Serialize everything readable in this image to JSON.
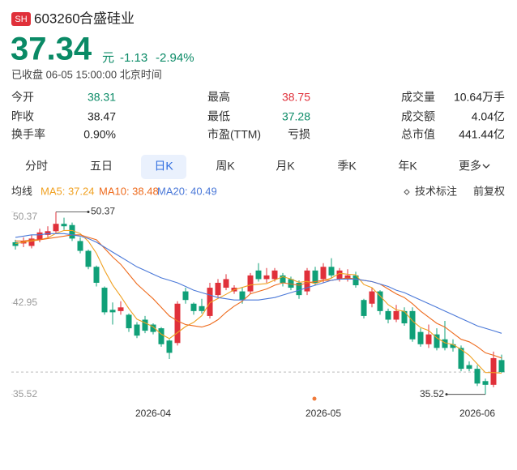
{
  "header": {
    "market": "SH",
    "code": "603260",
    "name": "合盛硅业",
    "price": "37.34",
    "unit": "元",
    "change": "-1.13",
    "change_pct": "-2.94%",
    "status": "已收盘 06-05 15:00:00 北京时间"
  },
  "stats": [
    [
      {
        "label": "今开",
        "value": "38.31",
        "color": "#0a8a66"
      },
      {
        "label": "最高",
        "value": "38.75",
        "color": "#e0303a"
      },
      {
        "label": "成交量",
        "value": "10.64万手",
        "color": "#222222"
      }
    ],
    [
      {
        "label": "昨收",
        "value": "38.47",
        "color": "#222222"
      },
      {
        "label": "最低",
        "value": "37.28",
        "color": "#0a8a66"
      },
      {
        "label": "成交额",
        "value": "4.04亿",
        "color": "#222222"
      }
    ],
    [
      {
        "label": "换手率",
        "value": "0.90%",
        "color": "#222222"
      },
      {
        "label": "市盈(TTM)",
        "value": "亏损",
        "color": "#222222"
      },
      {
        "label": "总市值",
        "value": "441.44亿",
        "color": "#222222"
      }
    ]
  ],
  "tabs": [
    "分时",
    "五日",
    "日K",
    "周K",
    "月K",
    "季K",
    "年K",
    "更多"
  ],
  "ma_legend": {
    "title": "均线",
    "items": [
      {
        "text": "MA5: 37.24",
        "color": "#f0a020"
      },
      {
        "text": "MA10: 38.48",
        "color": "#ee6a1c"
      },
      {
        "text": "MA20: 40.49",
        "color": "#4a78d8"
      }
    ]
  },
  "tools": [
    "技术标注",
    "前复权"
  ],
  "chart_data": {
    "type": "candlestick",
    "categories": [
      null,
      null,
      null,
      null,
      null,
      null,
      null,
      null,
      null,
      null,
      null,
      null,
      null,
      null,
      null,
      null,
      null,
      "2026-04",
      null,
      null,
      null,
      null,
      null,
      null,
      null,
      null,
      null,
      null,
      null,
      null,
      null,
      null,
      null,
      null,
      null,
      null,
      null,
      null,
      "2026-05",
      null,
      null,
      null,
      null,
      null,
      null,
      null,
      null,
      null,
      null,
      null,
      null,
      null,
      null,
      null,
      null,
      null,
      null,
      "2026-06",
      null,
      null,
      null
    ],
    "open": [
      47.9,
      47.8,
      47.6,
      48.1,
      48.5,
      48.8,
      49.4,
      49.3,
      48.0,
      47.2,
      45.9,
      44.2,
      42.4,
      42.3,
      42.0,
      41.2,
      41.6,
      41.2,
      40.9,
      39.9,
      39.7,
      43.9,
      42.9,
      42.7,
      41.9,
      43.6,
      44.2,
      43.9,
      43.9,
      43.9,
      45.6,
      44.9,
      44.9,
      45.2,
      44.9,
      44.6,
      43.9,
      45.6,
      44.9,
      45.9,
      44.9,
      44.9,
      45.2,
      43.2,
      42.9,
      43.9,
      42.3,
      41.6,
      42.3,
      42.3,
      40.6,
      39.6,
      40.4,
      40.0,
      39.6,
      39.3,
      37.9,
      37.6,
      36.6,
      36.3,
      38.31
    ],
    "high": [
      48.1,
      48.3,
      48.5,
      49.0,
      49.2,
      50.37,
      49.9,
      49.5,
      48.3,
      47.3,
      46.0,
      44.3,
      43.0,
      43.1,
      42.1,
      41.4,
      41.9,
      41.3,
      41.0,
      40.0,
      43.1,
      44.2,
      43.0,
      43.3,
      44.6,
      44.9,
      45.3,
      44.4,
      44.2,
      45.4,
      46.2,
      45.8,
      45.8,
      45.4,
      45.1,
      44.8,
      45.8,
      45.9,
      46.2,
      46.6,
      45.8,
      45.7,
      45.5,
      43.3,
      44.2,
      44.0,
      42.5,
      42.8,
      42.6,
      42.6,
      40.9,
      41.2,
      40.9,
      41.5,
      40.0,
      39.5,
      38.2,
      37.9,
      36.8,
      39.0,
      38.75
    ],
    "low": [
      47.3,
      47.5,
      47.4,
      47.9,
      48.3,
      48.6,
      48.9,
      48.0,
      47.0,
      45.7,
      44.3,
      42.0,
      41.2,
      42.0,
      40.6,
      40.1,
      40.5,
      40.4,
      39.4,
      38.4,
      39.5,
      42.9,
      42.0,
      42.1,
      41.7,
      43.4,
      44.0,
      43.7,
      42.9,
      43.7,
      44.7,
      44.6,
      44.7,
      44.3,
      44.0,
      43.3,
      43.6,
      44.4,
      44.6,
      45.0,
      44.7,
      44.7,
      44.2,
      41.7,
      42.6,
      42.0,
      41.3,
      41.4,
      41.1,
      39.8,
      39.4,
      39.3,
      39.1,
      39.1,
      39.0,
      37.4,
      37.4,
      36.2,
      35.52,
      36.1,
      37.28
    ],
    "close": [
      47.6,
      48.0,
      48.2,
      48.7,
      48.8,
      49.4,
      49.2,
      48.2,
      47.2,
      45.9,
      44.6,
      42.2,
      42.2,
      42.6,
      40.9,
      40.3,
      40.7,
      40.6,
      39.6,
      38.9,
      42.9,
      43.2,
      42.3,
      42.3,
      44.2,
      44.6,
      44.9,
      44.2,
      43.2,
      45.2,
      44.9,
      45.2,
      45.6,
      44.6,
      44.2,
      43.6,
      45.6,
      44.6,
      45.9,
      45.2,
      45.6,
      45.2,
      44.4,
      41.9,
      43.9,
      42.3,
      41.6,
      42.3,
      41.3,
      40.0,
      39.6,
      40.4,
      39.3,
      39.3,
      39.3,
      37.6,
      37.6,
      36.4,
      36.3,
      38.47,
      37.34
    ],
    "up_color": "#e0303a",
    "down_color": "#10a078",
    "ma": [
      {
        "color": "#f0a020",
        "values": [
          47.8,
          47.9,
          48.0,
          48.1,
          48.26,
          48.62,
          48.86,
          48.86,
          48.6,
          47.98,
          47.0,
          45.62,
          44.42,
          43.5,
          42.5,
          41.64,
          41.34,
          41.02,
          40.42,
          40.06,
          40.54,
          41.04,
          41.38,
          41.92,
          42.98,
          43.32,
          43.66,
          44.04,
          44.22,
          44.42,
          44.48,
          44.54,
          44.82,
          45.1,
          44.9,
          44.64,
          44.72,
          44.52,
          44.78,
          44.98,
          45.38,
          45.3,
          45.26,
          44.46,
          44.2,
          43.54,
          42.82,
          42.4,
          42.28,
          41.5,
          40.96,
          40.72,
          40.12,
          39.72,
          39.58,
          39.18,
          38.7,
          38.0,
          37.3,
          37.3,
          37.24
        ]
      },
      {
        "color": "#ee6a1c",
        "values": [
          48.0,
          48.0,
          48.1,
          48.1,
          48.2,
          48.3,
          48.4,
          48.5,
          48.5,
          48.3,
          48.1,
          47.4,
          46.7,
          46.1,
          45.3,
          44.5,
          43.9,
          43.3,
          42.6,
          41.9,
          41.5,
          41.2,
          41.1,
          41.0,
          41.2,
          41.6,
          42.2,
          42.7,
          43.1,
          43.7,
          43.9,
          44.1,
          44.4,
          44.6,
          44.5,
          44.4,
          44.6,
          44.7,
          44.8,
          44.8,
          44.9,
          45.0,
          44.9,
          44.8,
          44.7,
          44.5,
          44.1,
          43.7,
          43.4,
          42.9,
          42.3,
          41.8,
          41.3,
          41.0,
          40.5,
          40.0,
          39.8,
          39.4,
          38.9,
          38.7,
          38.48
        ]
      },
      {
        "color": "#4a78d8",
        "values": [
          48.3,
          48.4,
          48.5,
          48.5,
          48.6,
          48.6,
          48.6,
          48.5,
          48.4,
          48.2,
          47.9,
          47.5,
          47.1,
          46.7,
          46.3,
          45.9,
          45.6,
          45.3,
          45.0,
          44.8,
          44.6,
          44.3,
          44.0,
          43.8,
          43.6,
          43.4,
          43.3,
          43.2,
          43.2,
          43.2,
          43.2,
          43.3,
          43.4,
          43.6,
          43.8,
          44.0,
          44.2,
          44.4,
          44.6,
          44.8,
          44.9,
          44.9,
          44.9,
          44.8,
          44.7,
          44.5,
          44.3,
          44.0,
          43.8,
          43.5,
          43.2,
          42.9,
          42.6,
          42.3,
          42.0,
          41.7,
          41.4,
          41.1,
          40.9,
          40.7,
          40.49
        ]
      }
    ],
    "ylim": [
      35.3,
      50.6
    ],
    "yticks": [
      50.37,
      42.95,
      35.52
    ]
  }
}
